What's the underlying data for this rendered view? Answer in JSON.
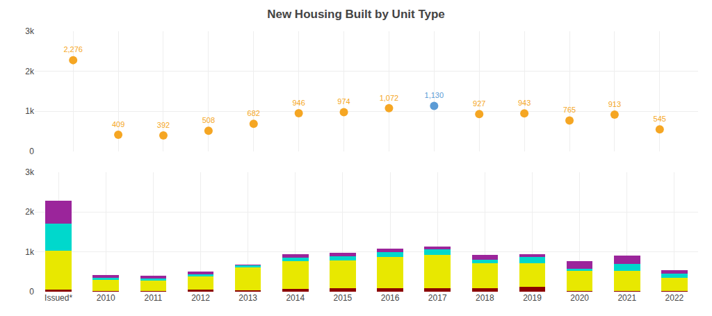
{
  "chart_data": [
    {
      "type": "scatter",
      "title": "New Housing Built by Unit Type",
      "categories": [
        "Issued*",
        "2010",
        "2011",
        "2012",
        "2013",
        "2014",
        "2015",
        "2016",
        "2017",
        "2018",
        "2019",
        "2020",
        "2021",
        "2022"
      ],
      "values": [
        2276,
        409,
        392,
        508,
        682,
        946,
        974,
        1072,
        1130,
        927,
        943,
        765,
        913,
        545
      ],
      "value_labels": [
        "2,276",
        "409",
        "392",
        "508",
        "682",
        "946",
        "974",
        "1,072",
        "1,130",
        "927",
        "943",
        "765",
        "913",
        "545"
      ],
      "colors": [
        "#f5a623",
        "#f5a623",
        "#f5a623",
        "#f5a623",
        "#f5a623",
        "#f5a623",
        "#f5a623",
        "#f5a623",
        "#5b9bd5",
        "#f5a623",
        "#f5a623",
        "#f5a623",
        "#f5a623",
        "#f5a623"
      ],
      "data_labels": true,
      "ylim": [
        0,
        3000
      ],
      "yticks": [
        0,
        {
          "value": 1000,
          "label": "1k"
        },
        {
          "value": 2000,
          "label": "2k"
        },
        {
          "value": 3000,
          "label": "3k"
        }
      ],
      "grid": true,
      "tick_labels": "y"
    },
    {
      "type": "bar",
      "stacked": true,
      "categories": [
        "Issued*",
        "2010",
        "2011",
        "2012",
        "2013",
        "2014",
        "2015",
        "2016",
        "2017",
        "2018",
        "2019",
        "2020",
        "2021",
        "2022"
      ],
      "series": [
        {
          "color": "#8b0000",
          "values": [
            55,
            25,
            20,
            55,
            40,
            65,
            80,
            85,
            95,
            90,
            130,
            15,
            25,
            15
          ]
        },
        {
          "color": "#e8e800",
          "values": [
            970,
            270,
            255,
            320,
            570,
            700,
            710,
            780,
            820,
            630,
            590,
            510,
            490,
            340
          ]
        },
        {
          "color": "#00d8cc",
          "values": [
            680,
            55,
            50,
            65,
            65,
            95,
            95,
            125,
            145,
            75,
            145,
            45,
            185,
            100
          ]
        },
        {
          "color": "#9b259b",
          "values": [
            571,
            59,
            67,
            68,
            7,
            80,
            89,
            82,
            70,
            132,
            78,
            195,
            213,
            90
          ]
        }
      ],
      "ylim": [
        0,
        3000
      ],
      "yticks": [
        0,
        {
          "value": 1000,
          "label": "1k"
        },
        {
          "value": 2000,
          "label": "2k"
        },
        {
          "value": 3000,
          "label": "3k"
        }
      ],
      "grid": true
    }
  ]
}
